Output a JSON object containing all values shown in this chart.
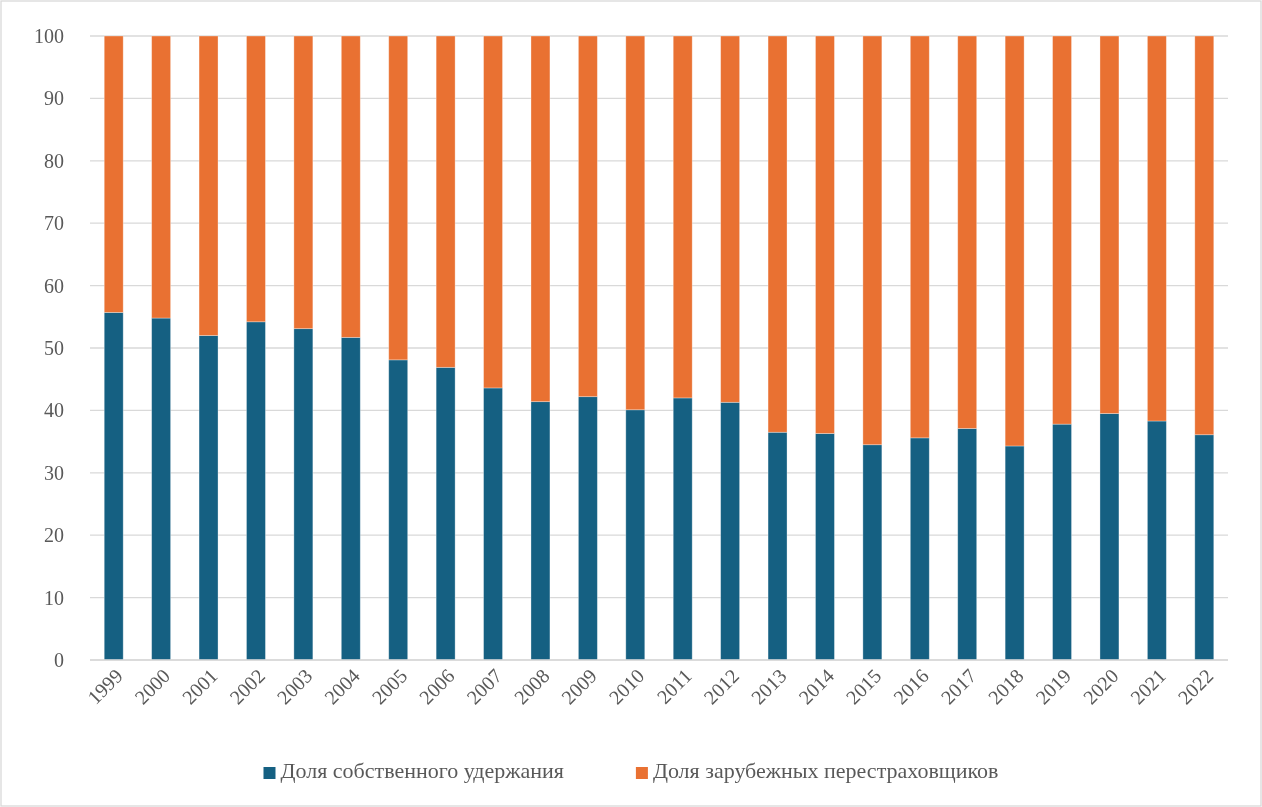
{
  "chart_data": {
    "type": "bar",
    "stacked": true,
    "categories": [
      "1999",
      "2000",
      "2001",
      "2002",
      "2003",
      "2004",
      "2005",
      "2006",
      "2007",
      "2008",
      "2009",
      "2010",
      "2011",
      "2012",
      "2013",
      "2014",
      "2015",
      "2016",
      "2017",
      "2018",
      "2019",
      "2020",
      "2021",
      "2022"
    ],
    "series": [
      {
        "name": "Доля собственного удержания",
        "color": "#156082",
        "values": [
          55.7,
          54.8,
          52.0,
          54.2,
          53.1,
          51.7,
          48.1,
          46.9,
          43.6,
          41.4,
          42.2,
          40.1,
          42.0,
          41.3,
          36.5,
          36.3,
          34.5,
          35.6,
          37.1,
          34.3,
          37.8,
          39.5,
          38.3,
          36.1
        ]
      },
      {
        "name": "Доля зарубежных перестраховщиков",
        "color": "#e97132",
        "values": [
          44.3,
          45.2,
          48.0,
          45.8,
          46.9,
          48.3,
          51.9,
          53.1,
          56.4,
          58.6,
          57.8,
          59.9,
          58.0,
          58.7,
          63.5,
          63.7,
          65.5,
          64.4,
          62.9,
          65.7,
          62.2,
          60.5,
          61.7,
          63.9
        ]
      }
    ],
    "ylim": [
      0,
      100
    ],
    "yticks": [
      0,
      10,
      20,
      30,
      40,
      50,
      60,
      70,
      80,
      90,
      100
    ],
    "grid": "y",
    "legend": "bottom"
  }
}
